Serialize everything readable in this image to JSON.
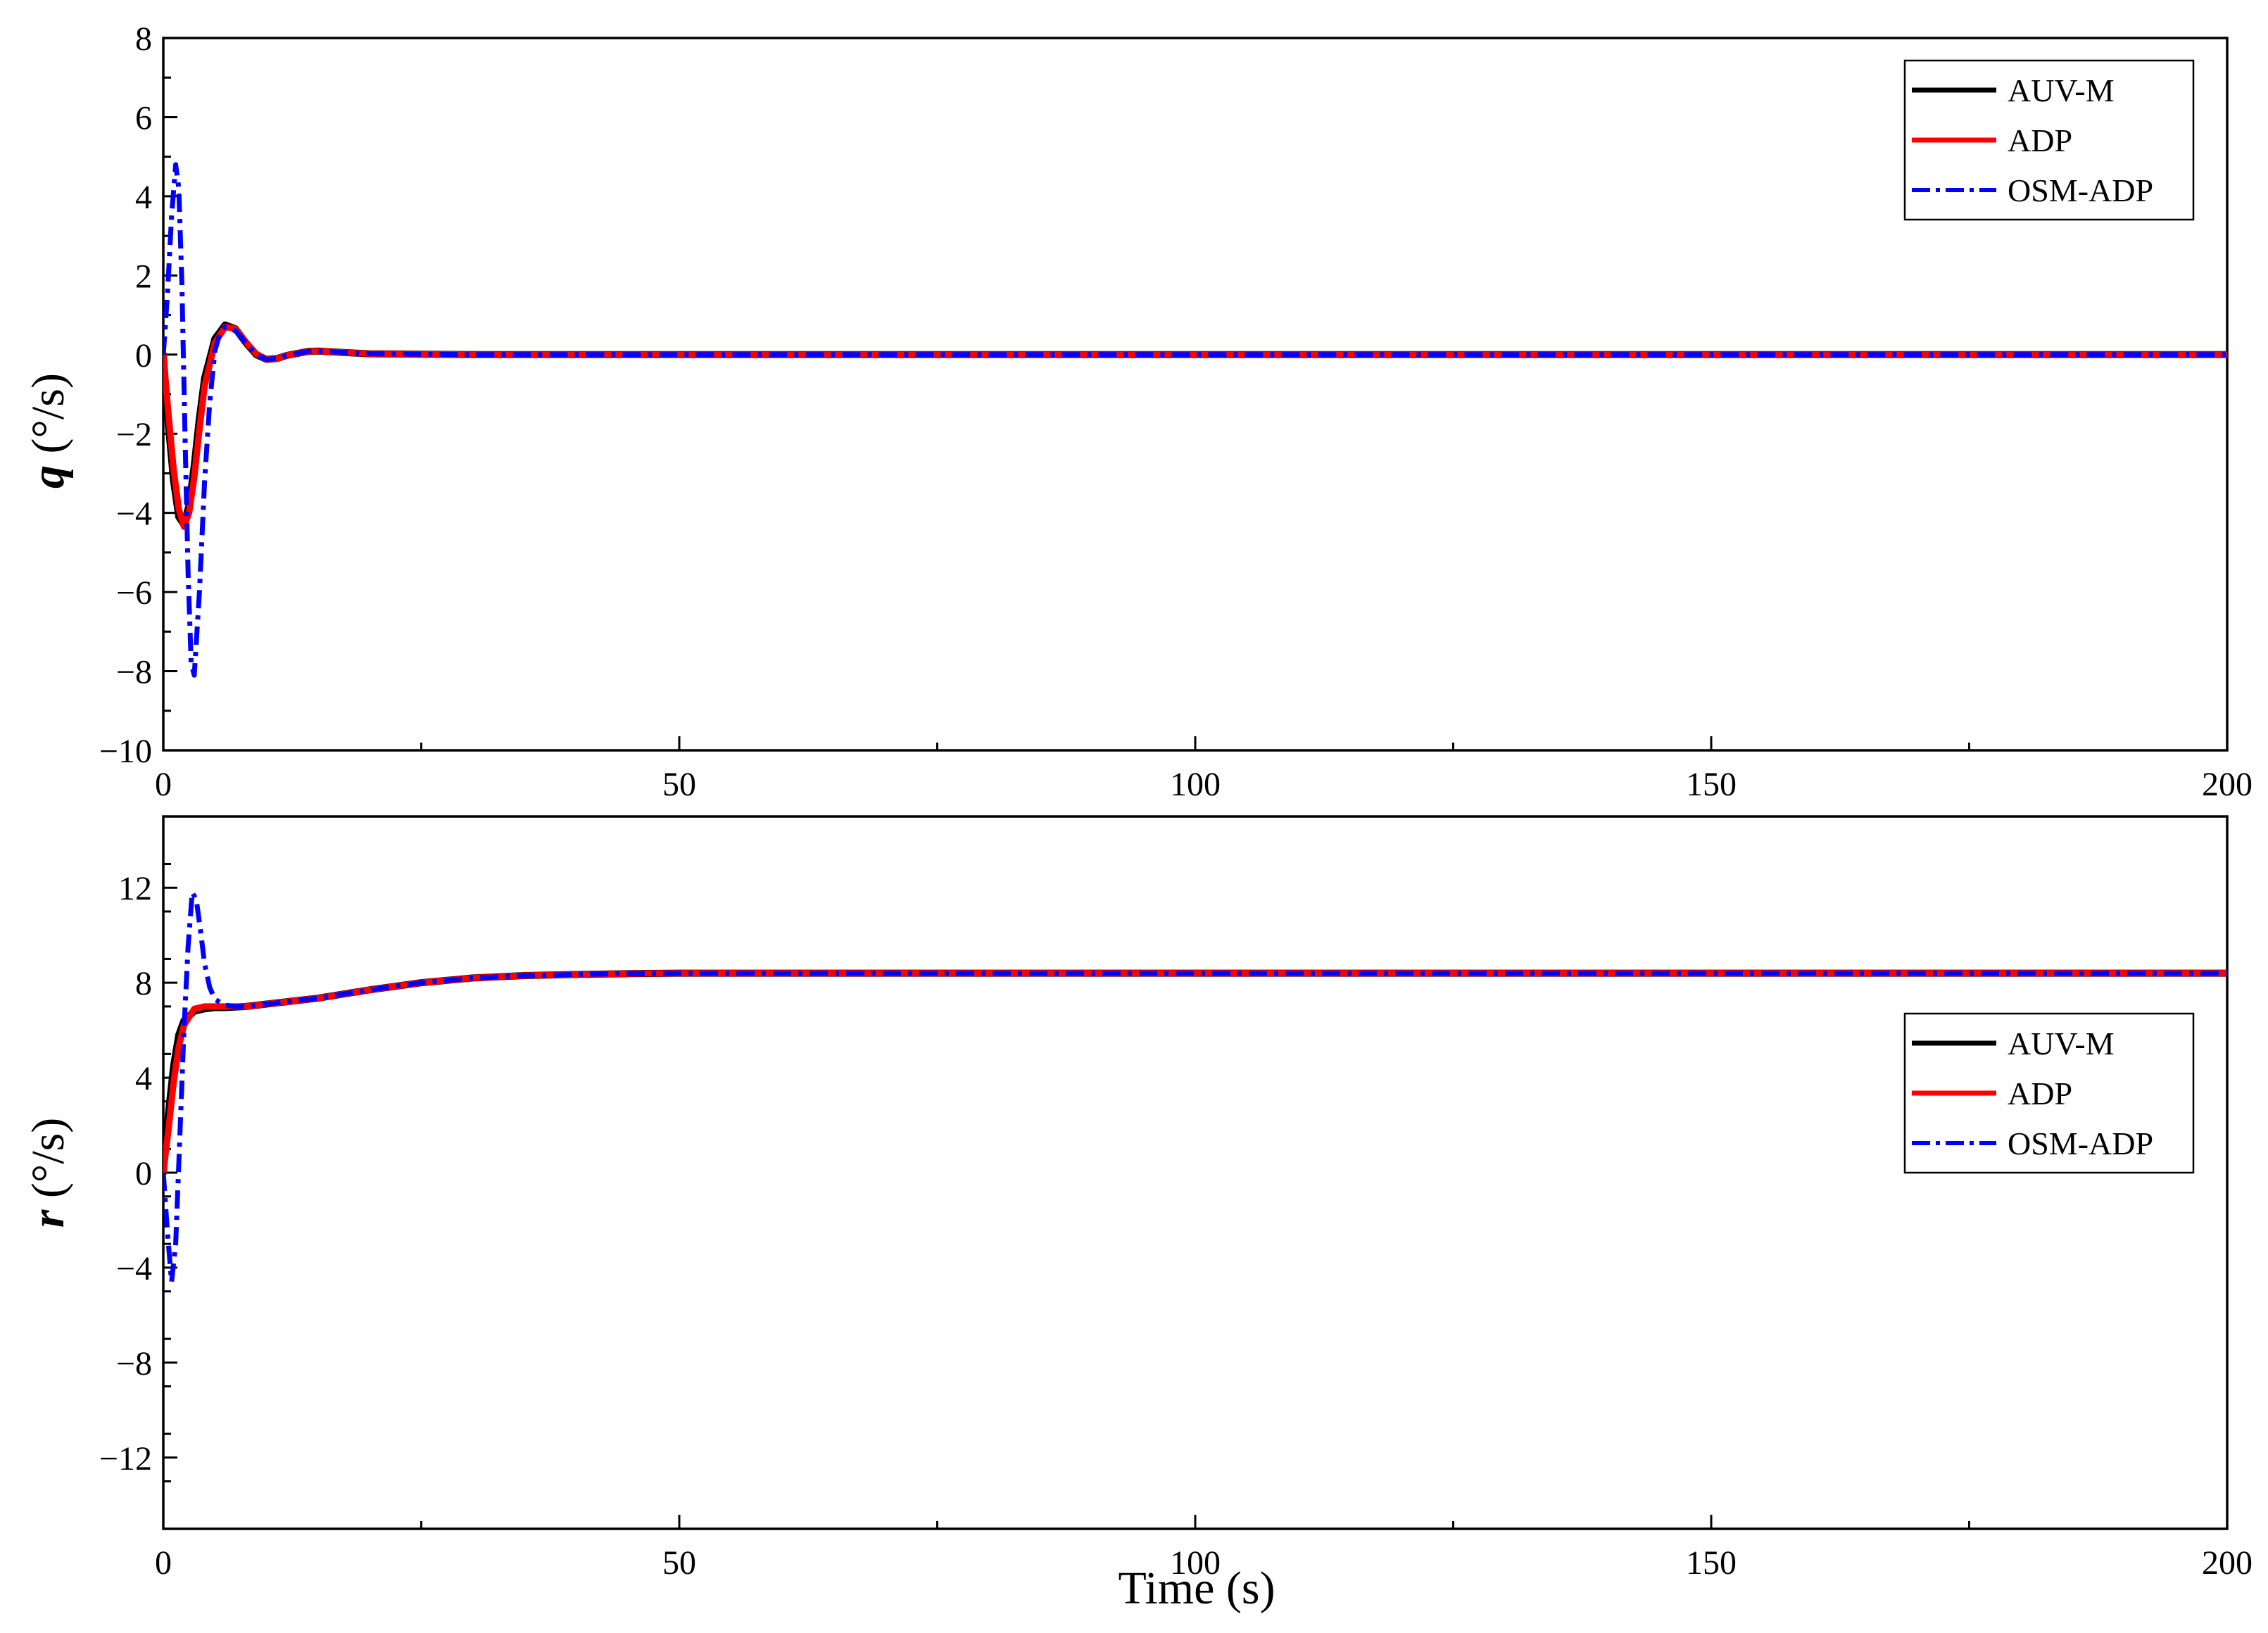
{
  "chart_data": [
    {
      "type": "line",
      "ylabel_var": "q",
      "ylabel_unit": " (°/s)",
      "xlim": [
        0,
        200
      ],
      "ylim": [
        -10,
        8
      ],
      "x_ticks": [
        0,
        50,
        100,
        150,
        200
      ],
      "y_ticks": [
        -10,
        -8,
        -6,
        -4,
        -2,
        0,
        2,
        4,
        6,
        8
      ],
      "grid": false,
      "legend_position": "top-right",
      "series": [
        {
          "name": "AUV-M",
          "color": "#000000",
          "style": "solid",
          "x": [
            0,
            0.5,
            1,
            1.5,
            2,
            2.5,
            3,
            3.5,
            4,
            5,
            6,
            7,
            8,
            9,
            10,
            11,
            12,
            14,
            15,
            17,
            20,
            25,
            30,
            50,
            100,
            150,
            200
          ],
          "y": [
            0,
            -1.8,
            -3.2,
            -4.1,
            -4.3,
            -3.8,
            -2.8,
            -1.6,
            -0.6,
            0.4,
            0.75,
            0.65,
            0.3,
            0.0,
            -0.12,
            -0.1,
            -0.02,
            0.08,
            0.09,
            0.06,
            0.02,
            0.01,
            0,
            0,
            0,
            0,
            0
          ]
        },
        {
          "name": "ADP",
          "color": "#ff0000",
          "style": "solid",
          "x": [
            0,
            0.5,
            1,
            1.5,
            2,
            2.5,
            3,
            3.5,
            4,
            5,
            6,
            7,
            8,
            9,
            10,
            11,
            12,
            14,
            15,
            17,
            20,
            25,
            30,
            50,
            100,
            150,
            200
          ],
          "y": [
            0,
            -1.5,
            -2.9,
            -3.9,
            -4.35,
            -4.0,
            -3.1,
            -1.9,
            -0.8,
            0.3,
            0.7,
            0.65,
            0.32,
            0.02,
            -0.12,
            -0.1,
            -0.02,
            0.08,
            0.09,
            0.06,
            0.02,
            0.01,
            0,
            0,
            0,
            0,
            0
          ]
        },
        {
          "name": "OSM-ADP",
          "color": "#0000ff",
          "style": "dashdot",
          "x": [
            0,
            0.4,
            0.8,
            1.2,
            1.5,
            1.8,
            2.1,
            2.4,
            2.7,
            3.0,
            3.5,
            4.0,
            4.5,
            5.0,
            5.5,
            6,
            7,
            8,
            9,
            10,
            11,
            12,
            14,
            15,
            17,
            20,
            25,
            30,
            50,
            100,
            150,
            200
          ],
          "y": [
            0,
            1.5,
            3.5,
            4.8,
            4.2,
            1.8,
            -2.0,
            -5.5,
            -7.8,
            -8.1,
            -6.0,
            -3.2,
            -1.2,
            0.1,
            0.55,
            0.7,
            0.6,
            0.3,
            0.0,
            -0.12,
            -0.1,
            -0.02,
            0.08,
            0.09,
            0.06,
            0.02,
            0.01,
            0,
            0,
            0,
            0,
            0
          ]
        }
      ]
    },
    {
      "type": "line",
      "ylabel_var": "r",
      "ylabel_unit": " (°/s)",
      "xlabel": "Time (s)",
      "xlim": [
        0,
        200
      ],
      "ylim": [
        -15,
        15
      ],
      "x_ticks": [
        0,
        50,
        100,
        150,
        200
      ],
      "y_ticks": [
        -12,
        -8,
        -4,
        0,
        4,
        8,
        12
      ],
      "grid": false,
      "legend_position": "center-right",
      "series": [
        {
          "name": "AUV-M",
          "color": "#000000",
          "style": "solid",
          "x": [
            0,
            0.5,
            1,
            1.5,
            2,
            3,
            4,
            5,
            6,
            8,
            10,
            15,
            20,
            25,
            30,
            35,
            40,
            45,
            50,
            100,
            150,
            200
          ],
          "y": [
            0,
            2.5,
            4.5,
            5.8,
            6.4,
            6.8,
            6.9,
            6.95,
            6.95,
            7.0,
            7.1,
            7.35,
            7.7,
            8.0,
            8.2,
            8.3,
            8.35,
            8.38,
            8.4,
            8.4,
            8.4,
            8.4
          ]
        },
        {
          "name": "ADP",
          "color": "#ff0000",
          "style": "solid",
          "x": [
            0,
            0.5,
            1,
            1.5,
            2,
            3,
            4,
            5,
            6,
            8,
            10,
            15,
            20,
            25,
            30,
            35,
            40,
            45,
            50,
            100,
            150,
            200
          ],
          "y": [
            0,
            1.8,
            3.8,
            5.3,
            6.2,
            6.9,
            7.0,
            7.0,
            7.0,
            7.0,
            7.1,
            7.35,
            7.7,
            8.0,
            8.2,
            8.3,
            8.35,
            8.38,
            8.4,
            8.4,
            8.4,
            8.4
          ]
        },
        {
          "name": "OSM-ADP",
          "color": "#0000ff",
          "style": "dashdot",
          "x": [
            0,
            0.4,
            0.8,
            1.2,
            1.6,
            2.0,
            2.4,
            2.8,
            3.2,
            3.6,
            4.0,
            4.5,
            5.0,
            6.0,
            7.0,
            8.0,
            10,
            15,
            20,
            25,
            30,
            35,
            40,
            45,
            50,
            100,
            150,
            200
          ],
          "y": [
            0,
            -2.5,
            -4.6,
            -3.0,
            1.5,
            6.0,
            9.5,
            11.8,
            11.5,
            10.2,
            8.8,
            7.8,
            7.3,
            7.05,
            7.0,
            7.0,
            7.1,
            7.35,
            7.7,
            8.0,
            8.2,
            8.3,
            8.35,
            8.38,
            8.4,
            8.4,
            8.4,
            8.4
          ]
        }
      ]
    }
  ]
}
